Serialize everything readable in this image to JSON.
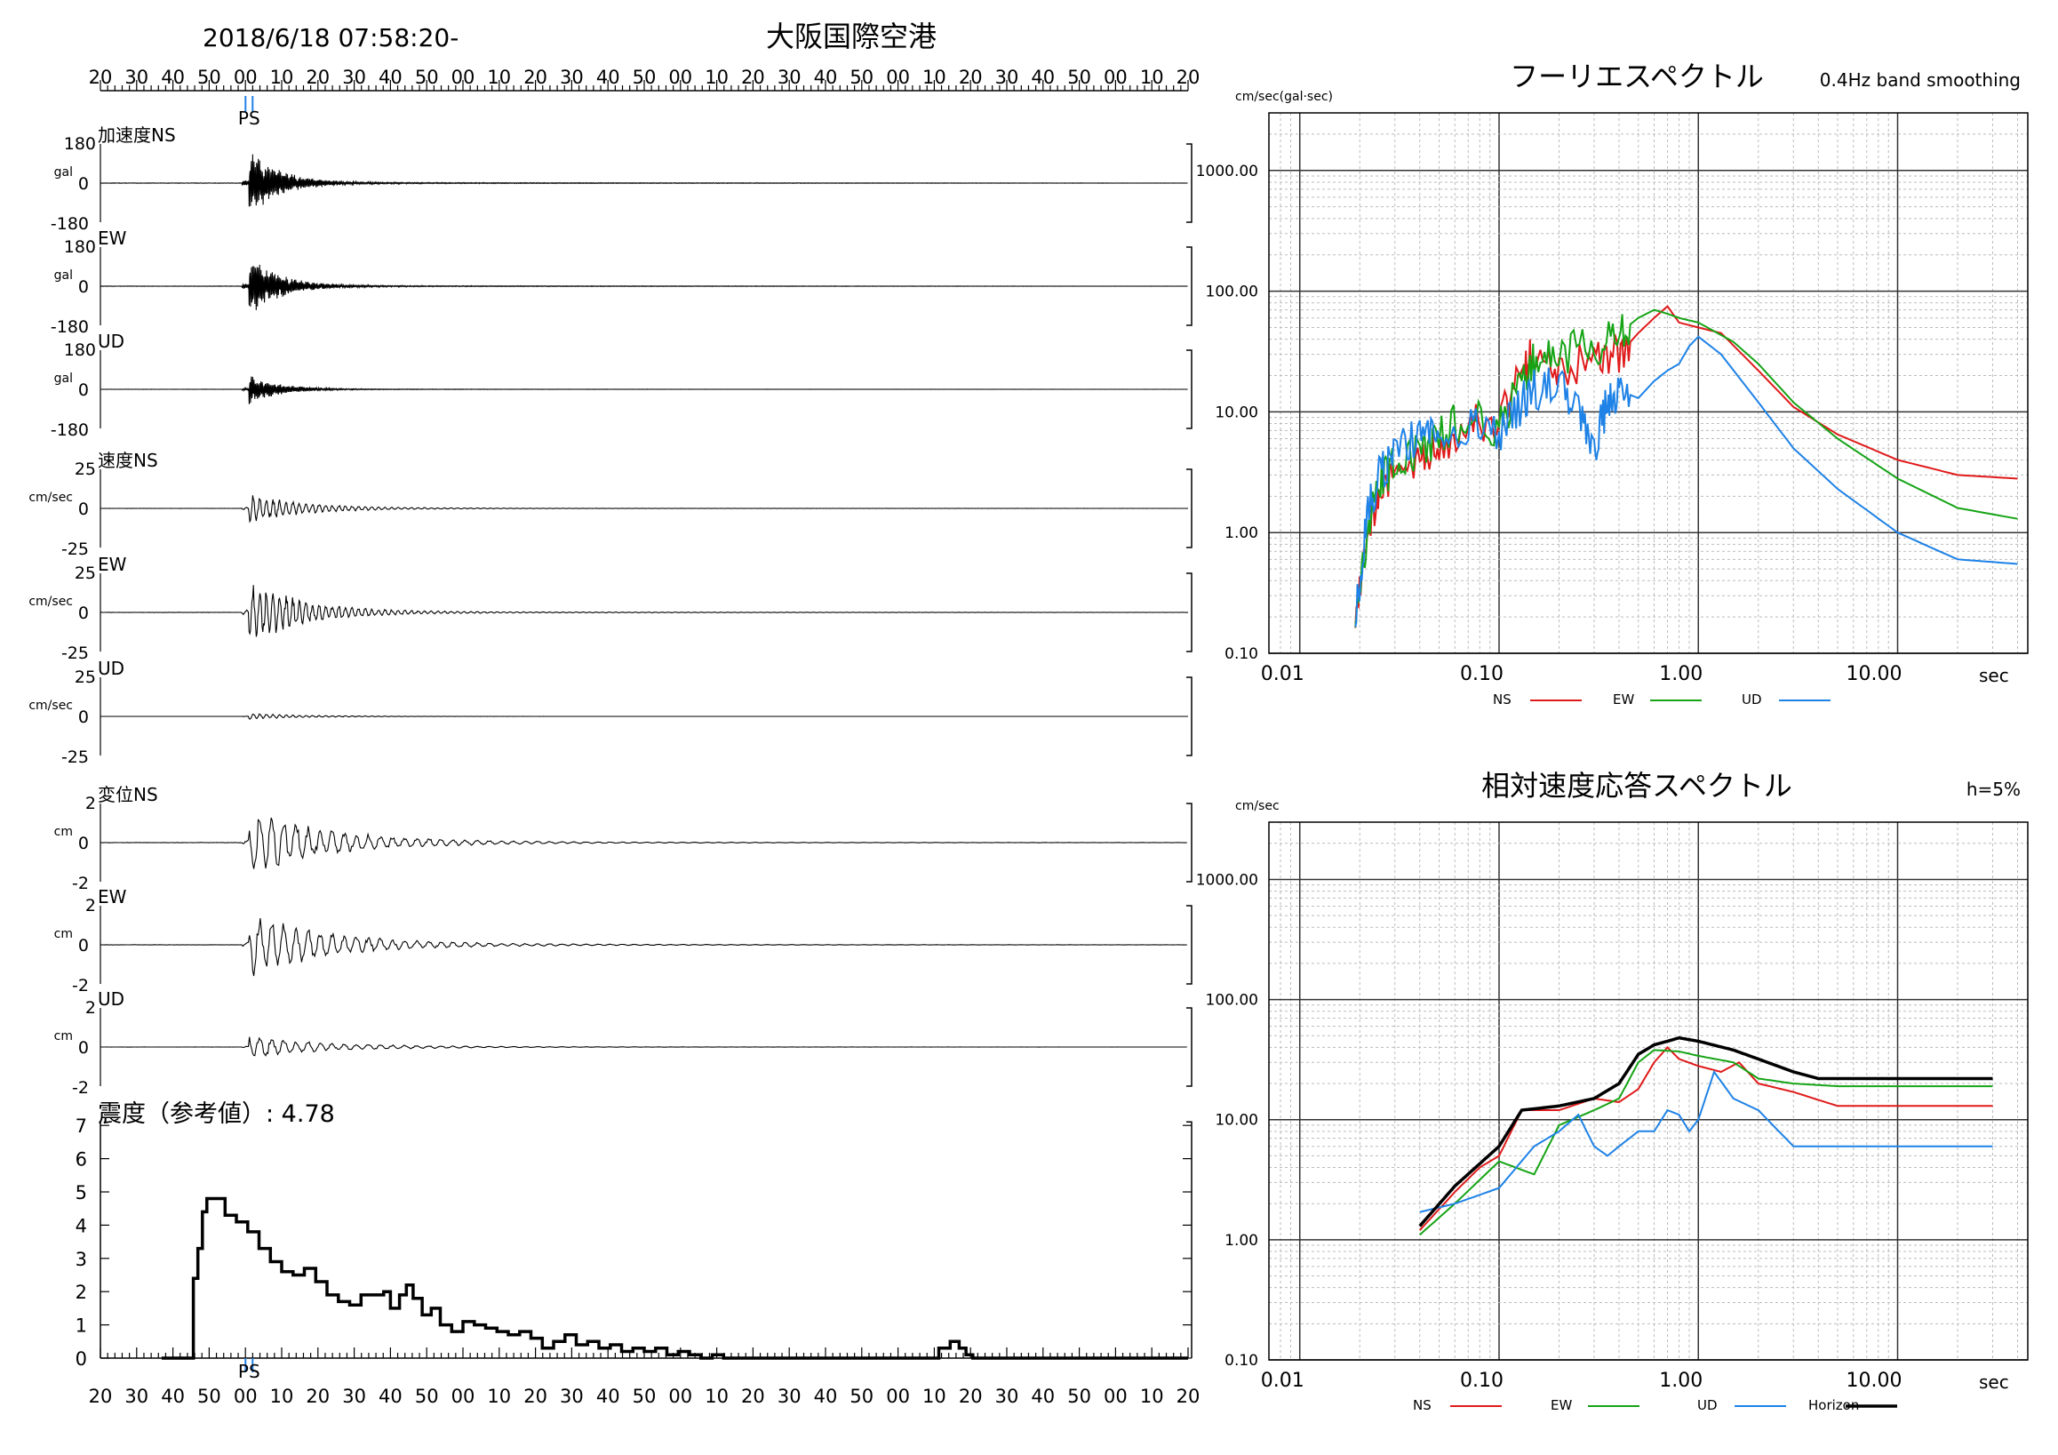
{
  "header": {
    "datetime": "2018/6/18 07:58:20-",
    "station": "大阪国際空港"
  },
  "time_ticks": [
    "20",
    "30",
    "40",
    "50",
    "00",
    "10",
    "20",
    "30",
    "40",
    "50",
    "00",
    "10",
    "20",
    "30",
    "40",
    "50",
    "00",
    "10",
    "20",
    "30",
    "40",
    "50",
    "00",
    "10",
    "20",
    "30",
    "40",
    "50",
    "00",
    "10",
    "20"
  ],
  "ps_marker": "PS",
  "chart_data": [
    {
      "type": "line",
      "panel": "waveforms",
      "x": {
        "start": "07:58:20",
        "end": "08:03:20",
        "unit": "s",
        "tick_interval": 10
      },
      "ps_time": 41,
      "series": [
        {
          "name": "加速度NS",
          "unit": "gal",
          "yticks": [
            "180",
            "0",
            "-180"
          ],
          "ylim": [
            -180,
            180
          ],
          "peak": 170
        },
        {
          "name": "EW",
          "unit": "gal",
          "yticks": [
            "180",
            "0",
            "-180"
          ],
          "ylim": [
            -180,
            180
          ],
          "peak": 150
        },
        {
          "name": "UD",
          "unit": "gal",
          "yticks": [
            "180",
            "0",
            "-180"
          ],
          "ylim": [
            -180,
            180
          ],
          "peak": 70
        },
        {
          "name": "速度NS",
          "unit": "cm/sec",
          "yticks": [
            "25",
            "0",
            "-25"
          ],
          "ylim": [
            -25,
            25
          ],
          "peak": 10
        },
        {
          "name": "EW",
          "unit": "cm/sec",
          "yticks": [
            "25",
            "0",
            "-25"
          ],
          "ylim": [
            -25,
            25
          ],
          "peak": 21
        },
        {
          "name": "UD",
          "unit": "cm/sec",
          "yticks": [
            "25",
            "0",
            "-25"
          ],
          "ylim": [
            -25,
            25
          ],
          "peak": 2
        },
        {
          "name": "変位NS",
          "unit": "cm",
          "yticks": [
            "2",
            "0",
            "-2"
          ],
          "ylim": [
            -2,
            2
          ],
          "peak": 1.8
        },
        {
          "name": "EW",
          "unit": "cm",
          "yticks": [
            "2",
            "0",
            "-2"
          ],
          "ylim": [
            -2,
            2
          ],
          "peak": 1.7
        },
        {
          "name": "UD",
          "unit": "cm",
          "yticks": [
            "2",
            "0",
            "-2"
          ],
          "ylim": [
            -2,
            2
          ],
          "peak": 0.6
        }
      ]
    },
    {
      "type": "line",
      "panel": "intensity",
      "title": "震度（参考値）: 4.78",
      "yticks": [
        "7",
        "6",
        "5",
        "4",
        "3",
        "2",
        "1",
        "0"
      ],
      "ylim": [
        0,
        7
      ],
      "points": [
        [
          27,
          0
        ],
        [
          40,
          0
        ],
        [
          41,
          2.4
        ],
        [
          43,
          3.3
        ],
        [
          45,
          4.4
        ],
        [
          47,
          4.8
        ],
        [
          52,
          4.8
        ],
        [
          55,
          4.3
        ],
        [
          60,
          4.1
        ],
        [
          65,
          3.8
        ],
        [
          70,
          3.3
        ],
        [
          75,
          2.9
        ],
        [
          80,
          2.6
        ],
        [
          85,
          2.5
        ],
        [
          90,
          2.7
        ],
        [
          95,
          2.3
        ],
        [
          100,
          1.9
        ],
        [
          105,
          1.7
        ],
        [
          110,
          1.6
        ],
        [
          115,
          1.9
        ],
        [
          120,
          1.9
        ],
        [
          125,
          2.0
        ],
        [
          128,
          1.5
        ],
        [
          132,
          1.9
        ],
        [
          135,
          2.2
        ],
        [
          138,
          1.8
        ],
        [
          142,
          1.3
        ],
        [
          146,
          1.5
        ],
        [
          150,
          1.0
        ],
        [
          155,
          0.8
        ],
        [
          160,
          1.1
        ],
        [
          165,
          1.0
        ],
        [
          170,
          0.9
        ],
        [
          175,
          0.8
        ],
        [
          180,
          0.7
        ],
        [
          185,
          0.8
        ],
        [
          190,
          0.6
        ],
        [
          195,
          0.3
        ],
        [
          200,
          0.5
        ],
        [
          205,
          0.7
        ],
        [
          210,
          0.4
        ],
        [
          215,
          0.5
        ],
        [
          220,
          0.3
        ],
        [
          225,
          0.4
        ],
        [
          230,
          0.2
        ],
        [
          235,
          0.3
        ],
        [
          240,
          0.2
        ],
        [
          245,
          0.3
        ],
        [
          250,
          0.1
        ],
        [
          255,
          0.2
        ],
        [
          260,
          0.1
        ],
        [
          265,
          0.0
        ],
        [
          270,
          0.1
        ],
        [
          275,
          0.0
        ],
        [
          300,
          0.0
        ],
        [
          305,
          0.0
        ],
        [
          360,
          0.0
        ],
        [
          370,
          0.3
        ],
        [
          375,
          0.5
        ],
        [
          379,
          0.3
        ],
        [
          382,
          0.1
        ],
        [
          385,
          0.0
        ],
        [
          480,
          0.0
        ]
      ]
    },
    {
      "type": "line",
      "panel": "fourier",
      "title": "フーリエスペクトル",
      "subtitle": "0.4Hz band smoothing",
      "ylabel": "cm/sec(gal·sec)",
      "xlabel": "sec",
      "xscale": "log",
      "yscale": "log",
      "xlim": [
        0.007,
        45
      ],
      "ylim": [
        0.1,
        3000
      ],
      "xticks": [
        "0.01",
        "0.10",
        "1.00",
        "10.00"
      ],
      "yticks": [
        "1000.00",
        "100.00",
        "10.00",
        "1.00",
        "0.10"
      ],
      "legend_position": "bottom",
      "series": [
        {
          "name": "NS",
          "color": "#e01b1b",
          "points": [
            [
              0.019,
              0.2
            ],
            [
              0.022,
              1.2
            ],
            [
              0.025,
              2.0
            ],
            [
              0.03,
              3.0
            ],
            [
              0.04,
              4.0
            ],
            [
              0.05,
              5.0
            ],
            [
              0.07,
              9.0
            ],
            [
              0.1,
              8.0
            ],
            [
              0.13,
              25
            ],
            [
              0.15,
              30
            ],
            [
              0.2,
              20
            ],
            [
              0.3,
              28
            ],
            [
              0.4,
              30
            ],
            [
              0.5,
              45
            ],
            [
              0.6,
              60
            ],
            [
              0.7,
              75
            ],
            [
              0.8,
              55
            ],
            [
              1.0,
              50
            ],
            [
              1.3,
              45
            ],
            [
              2.0,
              22
            ],
            [
              3.0,
              11
            ],
            [
              5.0,
              6.5
            ],
            [
              10.0,
              4.0
            ],
            [
              20.0,
              3.0
            ],
            [
              40.0,
              2.8
            ]
          ]
        },
        {
          "name": "EW",
          "color": "#16a416",
          "points": [
            [
              0.019,
              0.2
            ],
            [
              0.022,
              1.0
            ],
            [
              0.025,
              2.5
            ],
            [
              0.03,
              4.0
            ],
            [
              0.04,
              4.5
            ],
            [
              0.05,
              6.0
            ],
            [
              0.07,
              10
            ],
            [
              0.1,
              7.0
            ],
            [
              0.13,
              20
            ],
            [
              0.15,
              25
            ],
            [
              0.2,
              30
            ],
            [
              0.3,
              35
            ],
            [
              0.4,
              45
            ],
            [
              0.5,
              60
            ],
            [
              0.6,
              70
            ],
            [
              0.7,
              65
            ],
            [
              0.8,
              60
            ],
            [
              1.0,
              55
            ],
            [
              1.5,
              38
            ],
            [
              2.0,
              25
            ],
            [
              3.0,
              12
            ],
            [
              5.0,
              6.0
            ],
            [
              10.0,
              2.8
            ],
            [
              20.0,
              1.6
            ],
            [
              40.0,
              1.3
            ]
          ]
        },
        {
          "name": "UD",
          "color": "#1e82e6",
          "points": [
            [
              0.019,
              0.2
            ],
            [
              0.022,
              1.5
            ],
            [
              0.025,
              3.0
            ],
            [
              0.03,
              5.0
            ],
            [
              0.04,
              6.0
            ],
            [
              0.05,
              7.0
            ],
            [
              0.07,
              8.0
            ],
            [
              0.1,
              6.0
            ],
            [
              0.13,
              12
            ],
            [
              0.15,
              15
            ],
            [
              0.2,
              18
            ],
            [
              0.25,
              10
            ],
            [
              0.3,
              5.0
            ],
            [
              0.35,
              12
            ],
            [
              0.4,
              15
            ],
            [
              0.5,
              13
            ],
            [
              0.6,
              18
            ],
            [
              0.7,
              22
            ],
            [
              0.8,
              25
            ],
            [
              0.9,
              35
            ],
            [
              1.0,
              42
            ],
            [
              1.3,
              30
            ],
            [
              2.0,
              12
            ],
            [
              3.0,
              5.0
            ],
            [
              5.0,
              2.3
            ],
            [
              10.0,
              1.0
            ],
            [
              20.0,
              0.6
            ],
            [
              40.0,
              0.55
            ]
          ]
        }
      ]
    },
    {
      "type": "line",
      "panel": "response",
      "title": "相対速度応答スペクトル",
      "subtitle": "h=5%",
      "ylabel": "cm/sec",
      "xlabel": "sec",
      "xscale": "log",
      "yscale": "log",
      "xlim": [
        0.007,
        45
      ],
      "ylim": [
        0.1,
        3000
      ],
      "xticks": [
        "0.01",
        "0.10",
        "1.00",
        "10.00"
      ],
      "yticks": [
        "1000.00",
        "100.00",
        "10.00",
        "1.00",
        "0.10"
      ],
      "legend_position": "bottom",
      "series": [
        {
          "name": "NS",
          "color": "#e01b1b",
          "points": [
            [
              0.04,
              1.2
            ],
            [
              0.06,
              2.5
            ],
            [
              0.08,
              4.0
            ],
            [
              0.1,
              5.0
            ],
            [
              0.13,
              12
            ],
            [
              0.2,
              12
            ],
            [
              0.3,
              15
            ],
            [
              0.4,
              14
            ],
            [
              0.5,
              18
            ],
            [
              0.6,
              30
            ],
            [
              0.7,
              40
            ],
            [
              0.8,
              32
            ],
            [
              1.0,
              28
            ],
            [
              1.3,
              25
            ],
            [
              1.6,
              30
            ],
            [
              2.0,
              20
            ],
            [
              3.0,
              17
            ],
            [
              5.0,
              13
            ],
            [
              10.0,
              13
            ],
            [
              30.0,
              13
            ]
          ]
        },
        {
          "name": "EW",
          "color": "#16a416",
          "points": [
            [
              0.04,
              1.1
            ],
            [
              0.06,
              2.0
            ],
            [
              0.1,
              4.5
            ],
            [
              0.15,
              3.5
            ],
            [
              0.2,
              9.0
            ],
            [
              0.3,
              12
            ],
            [
              0.4,
              15
            ],
            [
              0.5,
              30
            ],
            [
              0.6,
              38
            ],
            [
              0.8,
              37
            ],
            [
              1.0,
              34
            ],
            [
              1.5,
              30
            ],
            [
              2.0,
              22
            ],
            [
              3.0,
              20
            ],
            [
              5.0,
              19
            ],
            [
              10.0,
              19
            ],
            [
              30.0,
              19
            ]
          ]
        },
        {
          "name": "UD",
          "color": "#1e82e6",
          "points": [
            [
              0.04,
              1.7
            ],
            [
              0.06,
              2.0
            ],
            [
              0.1,
              2.7
            ],
            [
              0.15,
              6.0
            ],
            [
              0.2,
              8.0
            ],
            [
              0.25,
              11
            ],
            [
              0.3,
              6.0
            ],
            [
              0.35,
              5.0
            ],
            [
              0.4,
              6.0
            ],
            [
              0.5,
              8.0
            ],
            [
              0.6,
              8.0
            ],
            [
              0.7,
              12
            ],
            [
              0.8,
              11
            ],
            [
              0.9,
              8.0
            ],
            [
              1.0,
              10
            ],
            [
              1.2,
              25
            ],
            [
              1.5,
              15
            ],
            [
              1.8,
              13
            ],
            [
              2.0,
              12
            ],
            [
              3.0,
              6.0
            ],
            [
              5.0,
              6.0
            ],
            [
              10.0,
              6.0
            ],
            [
              30.0,
              6.0
            ]
          ]
        },
        {
          "name": "Horizon",
          "color": "#000000",
          "points": [
            [
              0.04,
              1.3
            ],
            [
              0.06,
              2.8
            ],
            [
              0.1,
              6.0
            ],
            [
              0.13,
              12
            ],
            [
              0.2,
              13
            ],
            [
              0.3,
              15
            ],
            [
              0.4,
              20
            ],
            [
              0.5,
              35
            ],
            [
              0.6,
              42
            ],
            [
              0.7,
              45
            ],
            [
              0.8,
              48
            ],
            [
              1.0,
              45
            ],
            [
              1.5,
              38
            ],
            [
              2.0,
              32
            ],
            [
              3.0,
              25
            ],
            [
              4.0,
              22
            ],
            [
              10.0,
              22
            ],
            [
              30.0,
              22
            ]
          ]
        }
      ]
    }
  ]
}
